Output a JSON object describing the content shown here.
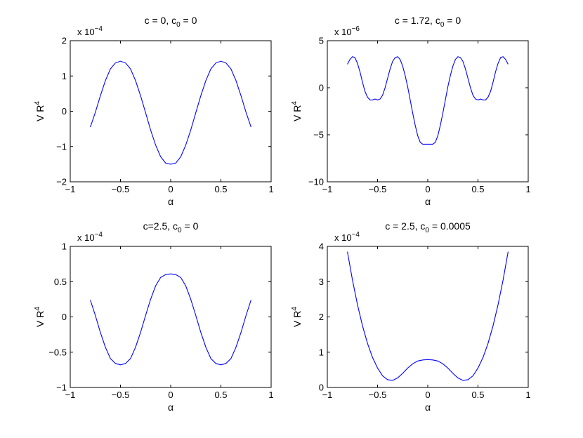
{
  "figure": {
    "line_color": "#0000ff"
  },
  "chart_data": [
    {
      "type": "line",
      "title": {
        "main": "c = 0, c",
        "sub": "0",
        "rest": " = 0"
      },
      "xlabel": "α",
      "ylabel": {
        "main": "V R",
        "sup": "4"
      },
      "exponent": {
        "main": "x 10",
        "sup": "−4"
      },
      "xlim": [
        -1,
        1
      ],
      "ylim": [
        -2,
        2
      ],
      "xticks": [
        "−1",
        "−0.5",
        "0",
        "0.5",
        "1"
      ],
      "yticks": [
        "−2",
        "−1",
        "0",
        "1",
        "2"
      ],
      "xtick_values": [
        -1,
        -0.5,
        0,
        0.5,
        1
      ],
      "ytick_values": [
        -2,
        -1,
        0,
        1,
        2
      ],
      "series": [
        {
          "x": [
            -0.8,
            -0.75,
            -0.7,
            -0.65,
            -0.6,
            -0.55,
            -0.5,
            -0.45,
            -0.4,
            -0.35,
            -0.3,
            -0.25,
            -0.2,
            -0.15,
            -0.1,
            -0.05,
            0,
            0.05,
            0.1,
            0.15,
            0.2,
            0.25,
            0.3,
            0.35,
            0.4,
            0.45,
            0.5,
            0.55,
            0.6,
            0.65,
            0.7,
            0.75,
            0.8
          ],
          "y": [
            -0.45,
            -0.03,
            0.44,
            0.87,
            1.2,
            1.37,
            1.42,
            1.37,
            1.2,
            0.87,
            0.44,
            -0.04,
            -0.53,
            -0.96,
            -1.29,
            -1.47,
            -1.5,
            -1.47,
            -1.29,
            -0.96,
            -0.53,
            -0.04,
            0.44,
            0.87,
            1.2,
            1.37,
            1.42,
            1.37,
            1.2,
            0.87,
            0.44,
            -0.03,
            -0.45
          ]
        }
      ]
    },
    {
      "type": "line",
      "title": {
        "main": "c = 1.72, c",
        "sub": "0",
        "rest": " = 0"
      },
      "xlabel": "α",
      "ylabel": {
        "main": "V R",
        "sup": "4"
      },
      "exponent": {
        "main": "x 10",
        "sup": "−6"
      },
      "xlim": [
        -1,
        1
      ],
      "ylim": [
        -10,
        5
      ],
      "xticks": [
        "−1",
        "−0.5",
        "0",
        "0.5",
        "1"
      ],
      "yticks": [
        "−10",
        "−5",
        "0",
        "5"
      ],
      "xtick_values": [
        -1,
        -0.5,
        0,
        0.5,
        1
      ],
      "ytick_values": [
        -10,
        -5,
        0,
        5
      ],
      "series": [
        {
          "x": [
            -0.8,
            -0.775,
            -0.75,
            -0.725,
            -0.7,
            -0.675,
            -0.65,
            -0.625,
            -0.6,
            -0.575,
            -0.55,
            -0.525,
            -0.5,
            -0.475,
            -0.45,
            -0.425,
            -0.4,
            -0.375,
            -0.35,
            -0.325,
            -0.3,
            -0.275,
            -0.25,
            -0.225,
            -0.2,
            -0.175,
            -0.15,
            -0.125,
            -0.1,
            -0.075,
            -0.05,
            -0.025,
            0,
            0.025,
            0.05,
            0.075,
            0.1,
            0.125,
            0.15,
            0.175,
            0.2,
            0.225,
            0.25,
            0.275,
            0.3,
            0.325,
            0.35,
            0.375,
            0.4,
            0.425,
            0.45,
            0.475,
            0.5,
            0.525,
            0.55,
            0.575,
            0.6,
            0.625,
            0.65,
            0.675,
            0.7,
            0.725,
            0.75,
            0.775,
            0.8
          ],
          "y": [
            2.5,
            3.0,
            3.3,
            3.2,
            2.6,
            1.7,
            0.6,
            -0.4,
            -1.0,
            -1.3,
            -1.3,
            -1.2,
            -1.3,
            -1.2,
            -0.8,
            0.0,
            1.0,
            2.0,
            2.8,
            3.2,
            3.3,
            3.0,
            2.3,
            1.3,
            0.1,
            -1.3,
            -2.7,
            -4.0,
            -5.1,
            -5.8,
            -6.0,
            -6.0,
            -6.0,
            -6.0,
            -6.0,
            -5.8,
            -5.1,
            -4.0,
            -2.7,
            -1.3,
            0.1,
            1.3,
            2.3,
            3.0,
            3.3,
            3.2,
            2.8,
            2.0,
            1.0,
            0.0,
            -0.8,
            -1.2,
            -1.3,
            -1.2,
            -1.3,
            -1.3,
            -1.0,
            -0.4,
            0.6,
            1.7,
            2.6,
            3.2,
            3.3,
            3.0,
            2.5
          ]
        }
      ]
    },
    {
      "type": "line",
      "title": {
        "main": "c=2.5, c",
        "sub": "0",
        "rest": " = 0"
      },
      "xlabel": "α",
      "ylabel": {
        "main": "V R",
        "sup": "4"
      },
      "exponent": {
        "main": "x 10",
        "sup": "−4"
      },
      "xlim": [
        -1,
        1
      ],
      "ylim": [
        -1,
        1
      ],
      "xticks": [
        "−1",
        "−0.5",
        "0",
        "0.5",
        "1"
      ],
      "yticks": [
        "−1",
        "−0.5",
        "0",
        "0.5",
        "1"
      ],
      "xtick_values": [
        -1,
        -0.5,
        0,
        0.5,
        1
      ],
      "ytick_values": [
        -1,
        -0.5,
        0,
        0.5,
        1
      ],
      "series": [
        {
          "x": [
            -0.8,
            -0.75,
            -0.7,
            -0.65,
            -0.6,
            -0.55,
            -0.5,
            -0.45,
            -0.4,
            -0.35,
            -0.3,
            -0.25,
            -0.2,
            -0.15,
            -0.1,
            -0.05,
            0,
            0.05,
            0.1,
            0.15,
            0.2,
            0.25,
            0.3,
            0.35,
            0.4,
            0.45,
            0.5,
            0.55,
            0.6,
            0.65,
            0.7,
            0.75,
            0.8
          ],
          "y": [
            0.24,
            0.02,
            -0.22,
            -0.43,
            -0.59,
            -0.66,
            -0.68,
            -0.66,
            -0.59,
            -0.43,
            -0.22,
            0.02,
            0.25,
            0.44,
            0.56,
            0.6,
            0.61,
            0.6,
            0.56,
            0.44,
            0.25,
            0.02,
            -0.22,
            -0.43,
            -0.59,
            -0.66,
            -0.68,
            -0.66,
            -0.59,
            -0.43,
            -0.22,
            0.02,
            0.24
          ]
        }
      ]
    },
    {
      "type": "line",
      "title": {
        "main": "c = 2.5, c",
        "sub": "0",
        "rest": " = 0.0005"
      },
      "xlabel": "α",
      "ylabel": {
        "main": "V R",
        "sup": "4"
      },
      "exponent": {
        "main": "x 10",
        "sup": "−4"
      },
      "xlim": [
        -1,
        1
      ],
      "ylim": [
        0,
        4
      ],
      "xticks": [
        "−1",
        "−0.5",
        "0",
        "0.5",
        "1"
      ],
      "yticks": [
        "0",
        "1",
        "2",
        "3",
        "4"
      ],
      "xtick_values": [
        -1,
        -0.5,
        0,
        0.5,
        1
      ],
      "ytick_values": [
        0,
        1,
        2,
        3,
        4
      ],
      "series": [
        {
          "x": [
            -0.8,
            -0.75,
            -0.7,
            -0.65,
            -0.6,
            -0.55,
            -0.5,
            -0.45,
            -0.4,
            -0.35,
            -0.3,
            -0.25,
            -0.2,
            -0.15,
            -0.1,
            -0.05,
            0,
            0.05,
            0.1,
            0.15,
            0.2,
            0.25,
            0.3,
            0.35,
            0.4,
            0.45,
            0.5,
            0.55,
            0.6,
            0.65,
            0.7,
            0.75,
            0.8
          ],
          "y": [
            3.85,
            3.05,
            2.35,
            1.75,
            1.25,
            0.85,
            0.55,
            0.33,
            0.22,
            0.2,
            0.27,
            0.4,
            0.55,
            0.67,
            0.75,
            0.78,
            0.79,
            0.78,
            0.75,
            0.67,
            0.55,
            0.4,
            0.27,
            0.2,
            0.22,
            0.33,
            0.55,
            0.85,
            1.25,
            1.75,
            2.35,
            3.05,
            3.85
          ]
        }
      ]
    }
  ]
}
